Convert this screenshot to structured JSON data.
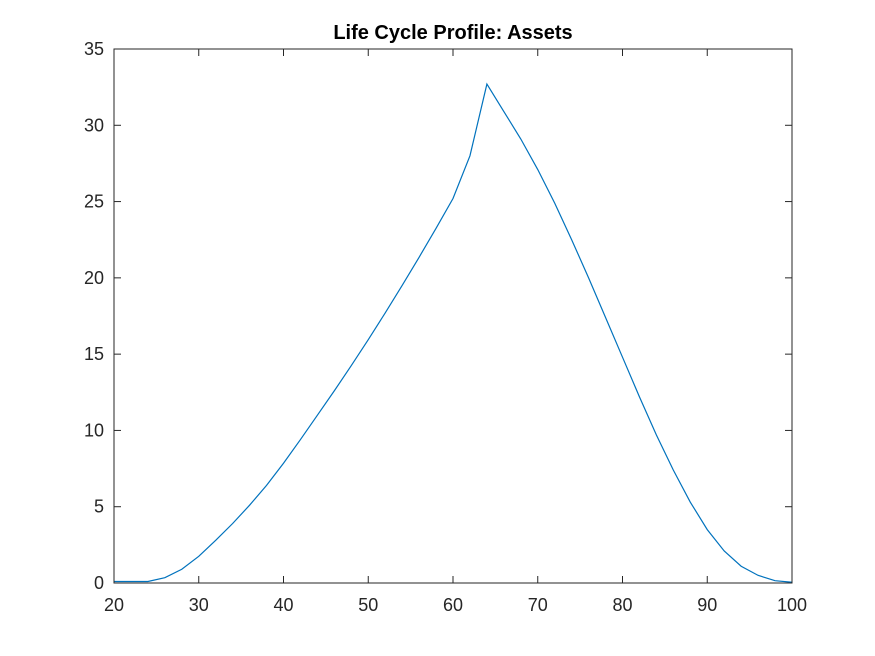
{
  "chart_data": {
    "type": "line",
    "title": "Life Cycle Profile: Assets",
    "xlabel": "",
    "ylabel": "",
    "xlim": [
      20,
      100
    ],
    "ylim": [
      0,
      35
    ],
    "xticks": [
      20,
      30,
      40,
      50,
      60,
      70,
      80,
      90,
      100
    ],
    "yticks": [
      0,
      5,
      10,
      15,
      20,
      25,
      30,
      35
    ],
    "grid": false,
    "series": [
      {
        "color": "#0072BD",
        "x": [
          20,
          22,
          24,
          26,
          28,
          30,
          32,
          34,
          36,
          38,
          40,
          42,
          44,
          46,
          48,
          50,
          52,
          54,
          56,
          58,
          60,
          62,
          64,
          66,
          68,
          70,
          72,
          74,
          76,
          78,
          80,
          82,
          84,
          86,
          88,
          90,
          92,
          94,
          96,
          98,
          100
        ],
        "values": [
          0.1,
          0.1,
          0.1,
          0.35,
          0.9,
          1.75,
          2.8,
          3.9,
          5.1,
          6.4,
          7.85,
          9.4,
          11.0,
          12.6,
          14.25,
          15.95,
          17.7,
          19.5,
          21.35,
          23.25,
          25.2,
          28.0,
          32.7,
          30.9,
          29.1,
          27.1,
          24.9,
          22.5,
          20.0,
          17.4,
          14.8,
          12.2,
          9.7,
          7.4,
          5.3,
          3.5,
          2.1,
          1.1,
          0.5,
          0.15,
          0.05
        ]
      }
    ]
  }
}
